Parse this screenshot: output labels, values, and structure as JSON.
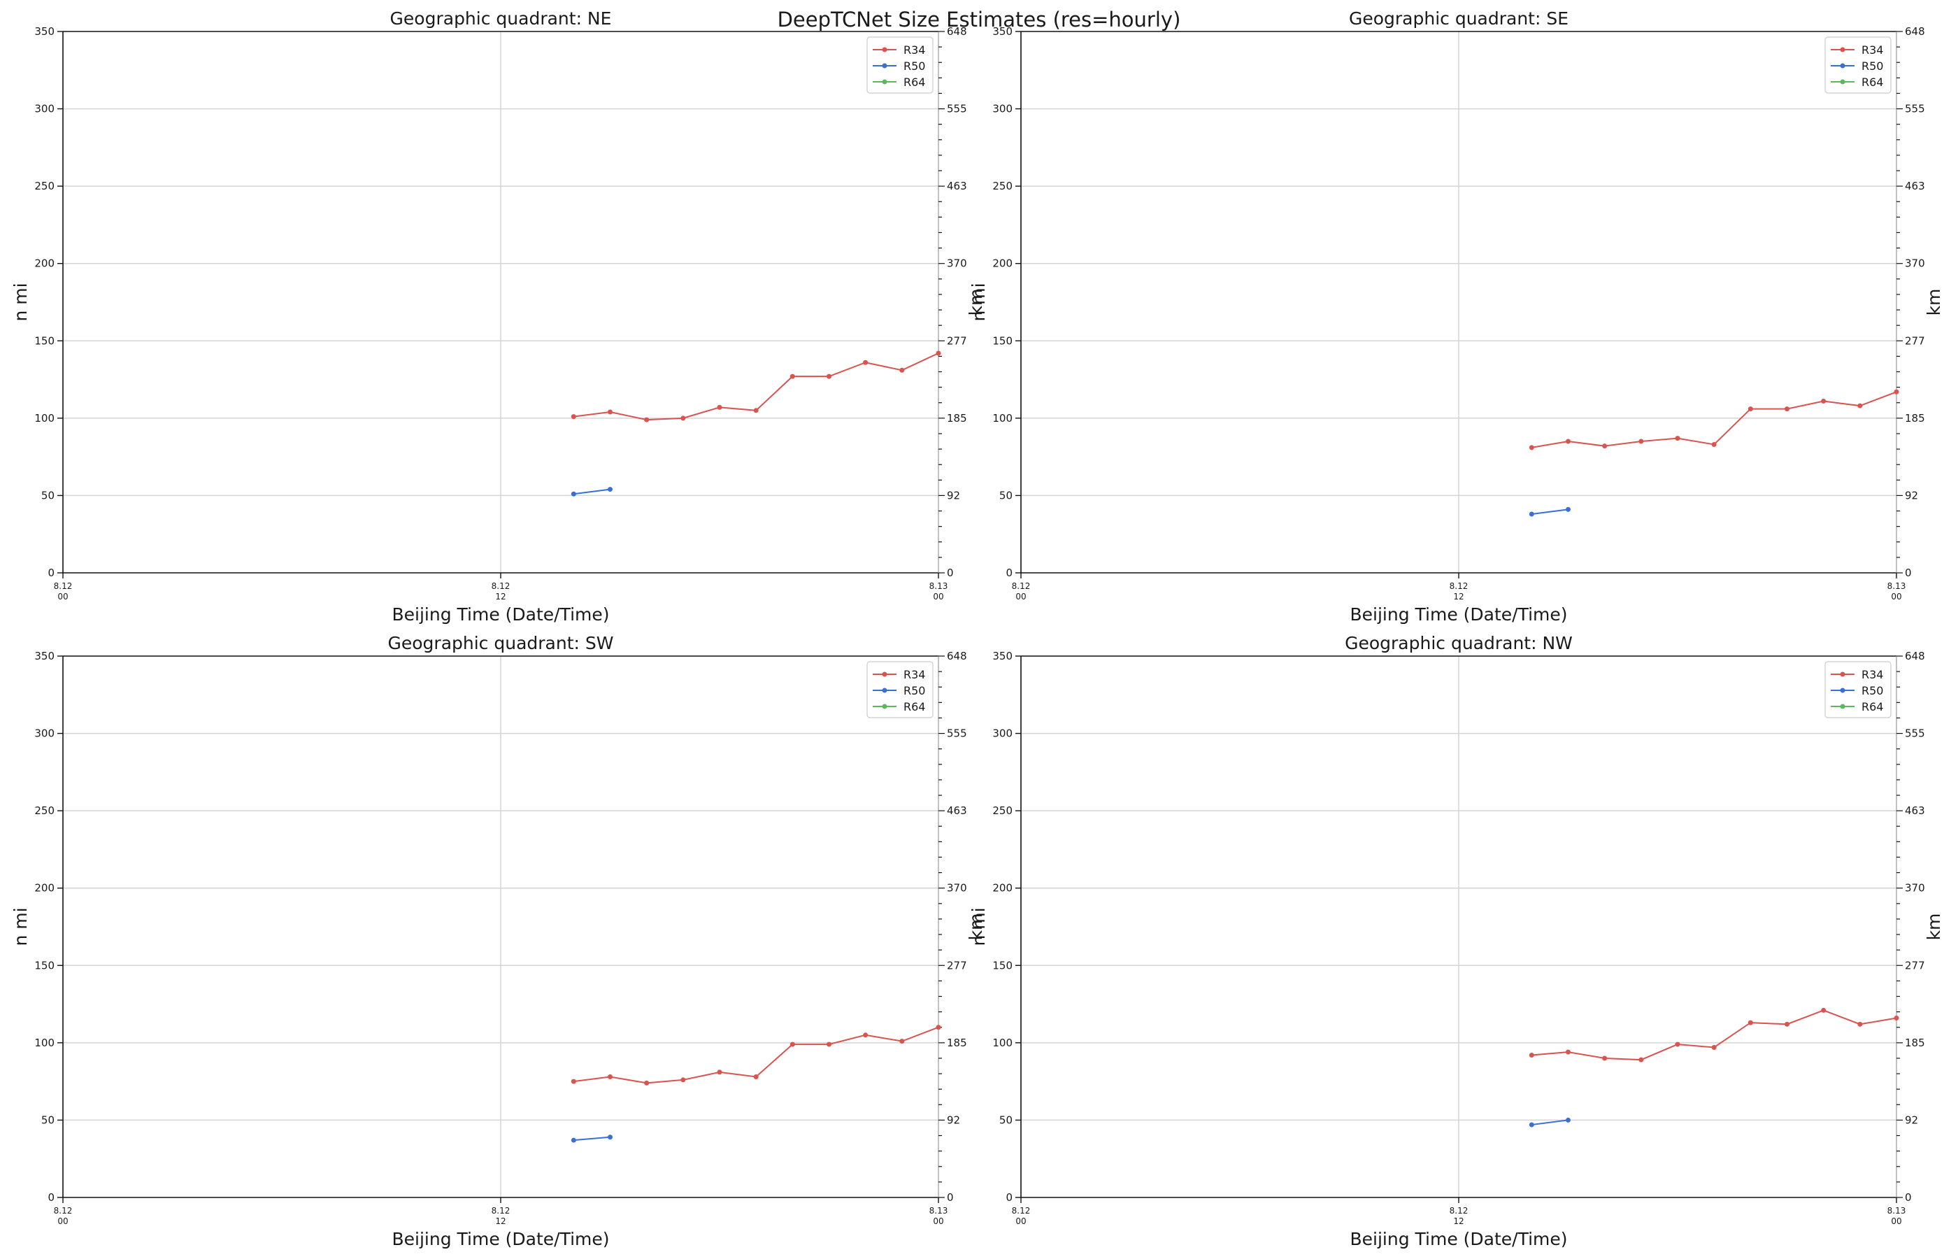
{
  "figure": {
    "title": "DeepTCNet Size Estimates (res=hourly)",
    "colors": {
      "R34": "#d9534f",
      "R50": "#3a6fd8",
      "R64": "#5cb85c",
      "grid": "#d4d4d4",
      "axis": "#111111"
    }
  },
  "chart_data": [
    {
      "type": "line",
      "title": "Geographic quadrant: NE",
      "xlabel": "Beijing Time (Date/Time)",
      "ylabel": "n mi",
      "ylabel_right": "km",
      "xlim": [
        0,
        24
      ],
      "ylim": [
        0,
        350
      ],
      "x_ticks": [
        {
          "x": 0,
          "date": "8.12",
          "time": "00"
        },
        {
          "x": 12,
          "date": "8.12",
          "time": "12"
        },
        {
          "x": 24,
          "date": "8.13",
          "time": "00"
        }
      ],
      "y_ticks": [
        0,
        50,
        100,
        150,
        200,
        250,
        300,
        350
      ],
      "y_ticks_right": [
        {
          "y": 0,
          "label": "0"
        },
        {
          "y": 50,
          "label": "92"
        },
        {
          "y": 100,
          "label": "185"
        },
        {
          "y": 150,
          "label": "277"
        },
        {
          "y": 200,
          "label": "370"
        },
        {
          "y": 250,
          "label": "463"
        },
        {
          "y": 300,
          "label": "555"
        },
        {
          "y": 350,
          "label": "648"
        }
      ],
      "legend": "top-right",
      "grid": true,
      "series": [
        {
          "name": "R34",
          "x": [
            14,
            15,
            16,
            17,
            18,
            19,
            20,
            21,
            22,
            23,
            24
          ],
          "values": [
            101,
            104,
            99,
            100,
            107,
            105,
            127,
            127,
            136,
            131,
            142
          ]
        },
        {
          "name": "R50",
          "x": [
            14,
            15
          ],
          "values": [
            51,
            54
          ]
        },
        {
          "name": "R64",
          "x": [],
          "values": []
        }
      ]
    },
    {
      "type": "line",
      "title": "Geographic quadrant: SE",
      "xlabel": "Beijing Time (Date/Time)",
      "ylabel": "n mi",
      "ylabel_right": "km",
      "xlim": [
        0,
        24
      ],
      "ylim": [
        0,
        350
      ],
      "x_ticks": [
        {
          "x": 0,
          "date": "8.12",
          "time": "00"
        },
        {
          "x": 12,
          "date": "8.12",
          "time": "12"
        },
        {
          "x": 24,
          "date": "8.13",
          "time": "00"
        }
      ],
      "y_ticks": [
        0,
        50,
        100,
        150,
        200,
        250,
        300,
        350
      ],
      "y_ticks_right": [
        {
          "y": 0,
          "label": "0"
        },
        {
          "y": 50,
          "label": "92"
        },
        {
          "y": 100,
          "label": "185"
        },
        {
          "y": 150,
          "label": "277"
        },
        {
          "y": 200,
          "label": "370"
        },
        {
          "y": 250,
          "label": "463"
        },
        {
          "y": 300,
          "label": "555"
        },
        {
          "y": 350,
          "label": "648"
        }
      ],
      "legend": "top-right",
      "grid": true,
      "series": [
        {
          "name": "R34",
          "x": [
            14,
            15,
            16,
            17,
            18,
            19,
            20,
            21,
            22,
            23,
            24
          ],
          "values": [
            81,
            85,
            82,
            85,
            87,
            83,
            106,
            106,
            111,
            108,
            117
          ]
        },
        {
          "name": "R50",
          "x": [
            14,
            15
          ],
          "values": [
            38,
            41
          ]
        },
        {
          "name": "R64",
          "x": [],
          "values": []
        }
      ]
    },
    {
      "type": "line",
      "title": "Geographic quadrant: SW",
      "xlabel": "Beijing Time (Date/Time)",
      "ylabel": "n mi",
      "ylabel_right": "km",
      "xlim": [
        0,
        24
      ],
      "ylim": [
        0,
        350
      ],
      "x_ticks": [
        {
          "x": 0,
          "date": "8.12",
          "time": "00"
        },
        {
          "x": 12,
          "date": "8.12",
          "time": "12"
        },
        {
          "x": 24,
          "date": "8.13",
          "time": "00"
        }
      ],
      "y_ticks": [
        0,
        50,
        100,
        150,
        200,
        250,
        300,
        350
      ],
      "y_ticks_right": [
        {
          "y": 0,
          "label": "0"
        },
        {
          "y": 50,
          "label": "92"
        },
        {
          "y": 100,
          "label": "185"
        },
        {
          "y": 150,
          "label": "277"
        },
        {
          "y": 200,
          "label": "370"
        },
        {
          "y": 250,
          "label": "463"
        },
        {
          "y": 300,
          "label": "555"
        },
        {
          "y": 350,
          "label": "648"
        }
      ],
      "legend": "top-right",
      "grid": true,
      "series": [
        {
          "name": "R34",
          "x": [
            14,
            15,
            16,
            17,
            18,
            19,
            20,
            21,
            22,
            23,
            24
          ],
          "values": [
            75,
            78,
            74,
            76,
            81,
            78,
            99,
            99,
            105,
            101,
            110
          ]
        },
        {
          "name": "R50",
          "x": [
            14,
            15
          ],
          "values": [
            37,
            39
          ]
        },
        {
          "name": "R64",
          "x": [],
          "values": []
        }
      ]
    },
    {
      "type": "line",
      "title": "Geographic quadrant: NW",
      "xlabel": "Beijing Time (Date/Time)",
      "ylabel": "n mi",
      "ylabel_right": "km",
      "xlim": [
        0,
        24
      ],
      "ylim": [
        0,
        350
      ],
      "x_ticks": [
        {
          "x": 0,
          "date": "8.12",
          "time": "00"
        },
        {
          "x": 12,
          "date": "8.12",
          "time": "12"
        },
        {
          "x": 24,
          "date": "8.13",
          "time": "00"
        }
      ],
      "y_ticks": [
        0,
        50,
        100,
        150,
        200,
        250,
        300,
        350
      ],
      "y_ticks_right": [
        {
          "y": 0,
          "label": "0"
        },
        {
          "y": 50,
          "label": "92"
        },
        {
          "y": 100,
          "label": "185"
        },
        {
          "y": 150,
          "label": "277"
        },
        {
          "y": 200,
          "label": "370"
        },
        {
          "y": 250,
          "label": "463"
        },
        {
          "y": 300,
          "label": "555"
        },
        {
          "y": 350,
          "label": "648"
        }
      ],
      "legend": "top-right",
      "grid": true,
      "series": [
        {
          "name": "R34",
          "x": [
            14,
            15,
            16,
            17,
            18,
            19,
            20,
            21,
            22,
            23,
            24
          ],
          "values": [
            92,
            94,
            90,
            89,
            99,
            97,
            113,
            112,
            121,
            112,
            116
          ]
        },
        {
          "name": "R50",
          "x": [
            14,
            15
          ],
          "values": [
            47,
            50
          ]
        },
        {
          "name": "R64",
          "x": [],
          "values": []
        }
      ]
    }
  ]
}
